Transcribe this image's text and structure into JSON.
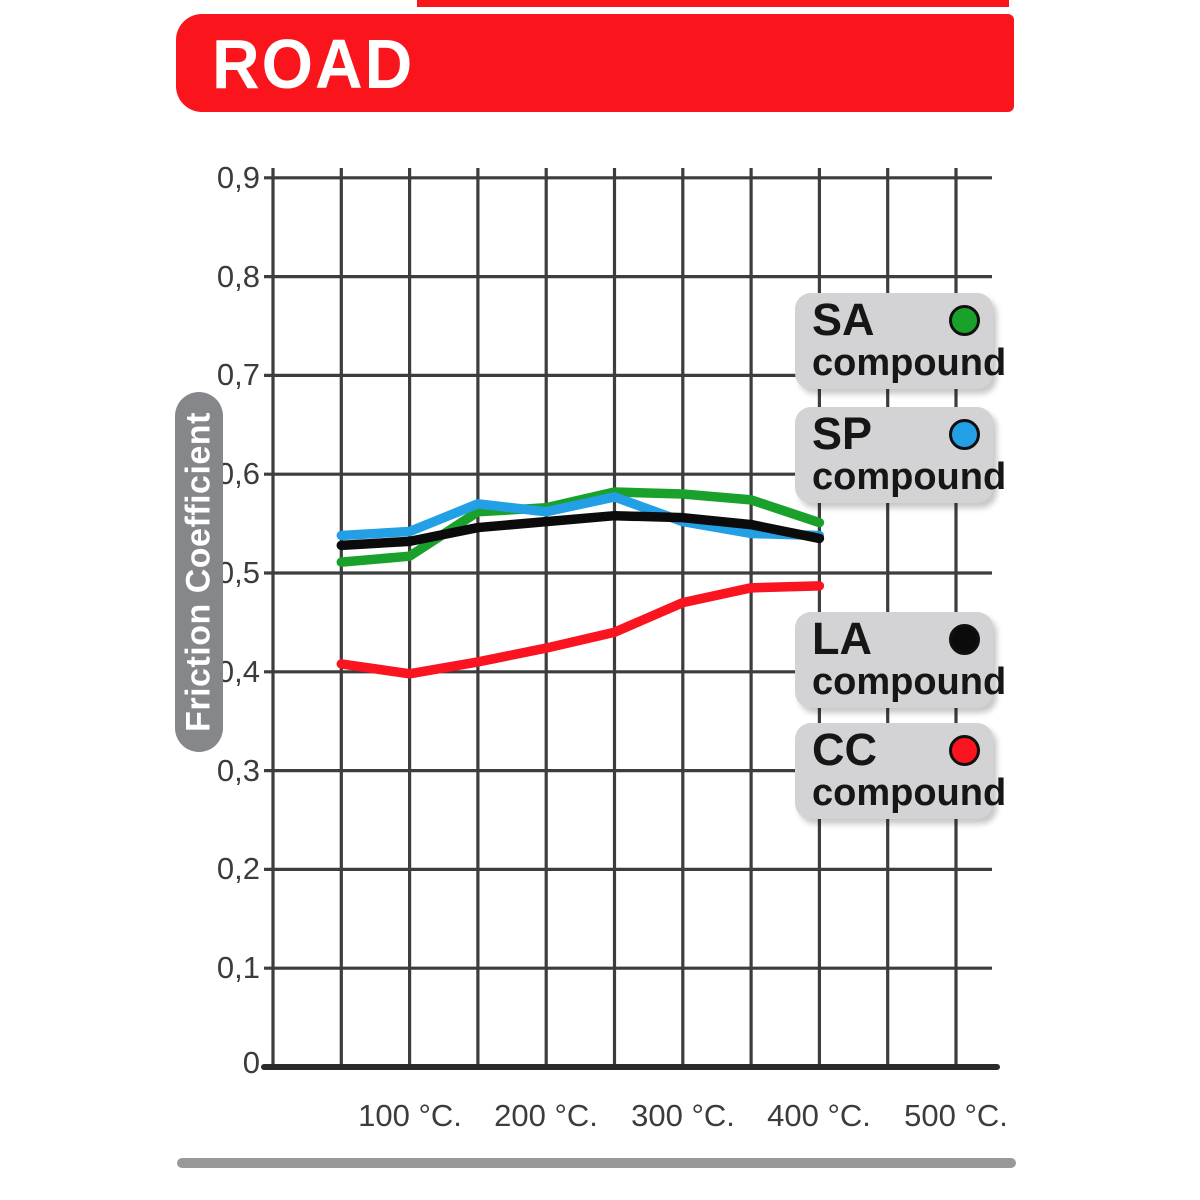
{
  "banner": {
    "title": "ROAD",
    "color": "#fa141b"
  },
  "colors": {
    "brand_red": "#fa141b",
    "grid_line": "#3d3d3d",
    "axis_line": "#2b2b2b",
    "legend_background": "#d3d3d5",
    "y_title_pill": "#85878a",
    "footer_bar": "#97999b"
  },
  "y_axis": {
    "title": "Friction Coefficient",
    "tick_labels": [
      "0,9",
      "0,8",
      "0,7",
      "0,6",
      "0,5",
      "0,4",
      "0,3",
      "0,2",
      "0,1",
      "0"
    ]
  },
  "x_axis": {
    "tick_labels": [
      "100 °C.",
      "200 °C.",
      "300 °C.",
      "400 °C.",
      "500 °C."
    ]
  },
  "legend": [
    {
      "code": "SA",
      "label": "compound",
      "color": "#1aa12b"
    },
    {
      "code": "SP",
      "label": "compound",
      "color": "#229fe5"
    },
    {
      "code": "LA",
      "label": "compound",
      "color": "#0b0b0b"
    },
    {
      "code": "CC",
      "label": "compound",
      "color": "#fa1420"
    }
  ],
  "chart_data": {
    "type": "line",
    "title": "ROAD",
    "xlabel": "",
    "ylabel": "Friction Coefficient",
    "x_unit": "°C",
    "x": [
      50,
      100,
      150,
      200,
      250,
      300,
      350,
      400
    ],
    "series": [
      {
        "name": "SA compound",
        "color": "#1aa12b",
        "values": [
          0.511,
          0.517,
          0.562,
          0.566,
          0.582,
          0.58,
          0.574,
          0.551
        ]
      },
      {
        "name": "SP compound",
        "color": "#229fe5",
        "values": [
          0.538,
          0.542,
          0.57,
          0.562,
          0.577,
          0.552,
          0.54,
          0.538
        ]
      },
      {
        "name": "LA compound",
        "color": "#0b0b0b",
        "values": [
          0.528,
          0.532,
          0.546,
          0.552,
          0.558,
          0.556,
          0.549,
          0.535
        ]
      },
      {
        "name": "CC compound",
        "color": "#fa1420",
        "values": [
          0.408,
          0.398,
          0.41,
          0.424,
          0.44,
          0.47,
          0.485,
          0.487
        ]
      }
    ],
    "xlim": [
      0,
      500
    ],
    "ylim": [
      0,
      0.9
    ],
    "x_tick_step": 50,
    "y_tick_step": 0.1,
    "x_ticks_labeled": [
      100,
      200,
      300,
      400,
      500
    ],
    "grid": true,
    "legend_position": "right-overlay"
  }
}
